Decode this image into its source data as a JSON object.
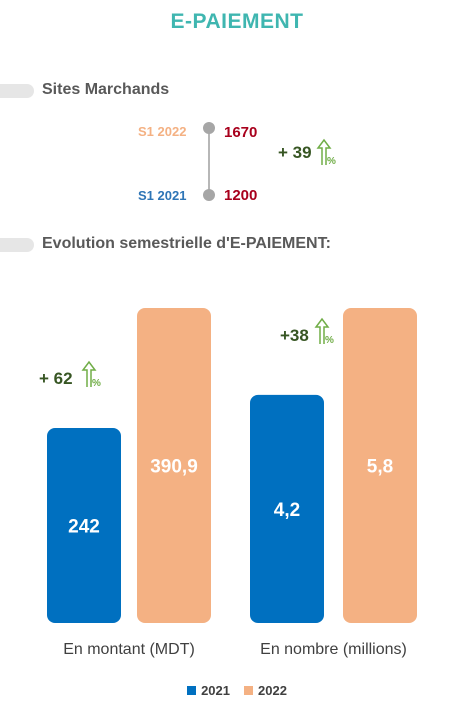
{
  "title": "E-PAIEMENT",
  "merchants": {
    "label": "Sites Marchands",
    "items": [
      {
        "period": "S1 2022",
        "value": "1670",
        "color": "#f4b183"
      },
      {
        "period": "S1 2021",
        "value": "1200",
        "color": "#2e75b6"
      }
    ],
    "growth": "+ 39"
  },
  "evolution_label": "Evolution semestrielle d'E-PAIEMENT:",
  "colors": {
    "y2021": "#0070c0",
    "y2022": "#f4b183",
    "growth": "#375623"
  },
  "chart_data": {
    "type": "bar",
    "categories": [
      "En montant (MDT)",
      "En nombre (millions)"
    ],
    "series": [
      {
        "name": "2021",
        "values": [
          242,
          4.2
        ],
        "labels": [
          "242",
          "4,2"
        ]
      },
      {
        "name": "2022",
        "values": [
          390.9,
          5.8
        ],
        "labels": [
          "390,9",
          "5,8"
        ]
      }
    ],
    "growth_labels": [
      "+ 62",
      "+38"
    ],
    "title": "",
    "xlabel": "",
    "ylabel": "",
    "legend": "bottom",
    "grid": false
  }
}
